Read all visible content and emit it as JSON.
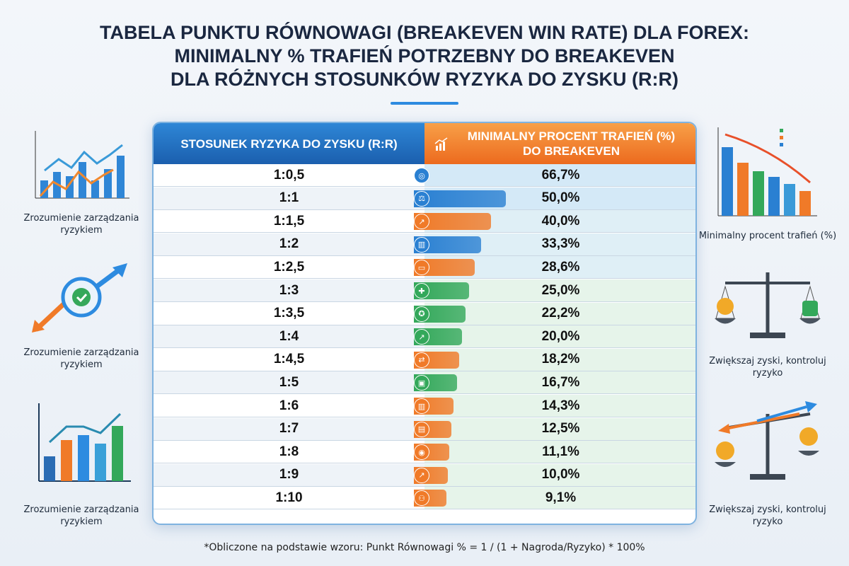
{
  "title": [
    "TABELA PUNKTU RÓWNOWAGI (BREAKEVEN WIN RATE) DLA FOREX:",
    "MINIMALNY % TRAFIEŃ POTRZEBNY DO BREAKEVEN",
    "DLA RÓŻNYCH STOSUNKÓW RYZYKA DO ZYSKU (R:R)"
  ],
  "side_left": [
    "Zrozumienie zarządzania ryzykiem",
    "Zrozumienie zarządzania ryzykiem",
    "Zrozumienie zarządzania ryzykiem"
  ],
  "side_right": [
    "Minimalny procent trafień (%)",
    "Zwiększaj zyski, kontroluj ryzyko",
    "Zwiększaj zyski, kontroluj ryzyko"
  ],
  "footnote": "*Obliczone na podstawie wzoru: Punkt Równowagi % = 1 / (1 + Nagroda/Ryzyko) * 100%",
  "colors": {
    "blue": "#2a80d2",
    "orange": "#f07a28",
    "green": "#33a85a",
    "header_left": "#1f6cbc",
    "header_right": "#f08a30"
  },
  "chart_data": {
    "type": "table",
    "columns": [
      "STOSUNEK RYZYKA DO ZYSKU (R:R)",
      "MINIMALNY PROCENT TRAFIEŃ (%) DO BREAKEVEN"
    ],
    "categories": [
      "1:0,5",
      "1:1",
      "1:1,5",
      "1:2",
      "1:2,5",
      "1:3",
      "1:3,5",
      "1:4",
      "1:4,5",
      "1:5",
      "1:6",
      "1:7",
      "1:8",
      "1:9",
      "1:10"
    ],
    "values": [
      66.7,
      50.0,
      40.0,
      33.3,
      28.6,
      25.0,
      22.2,
      20.0,
      18.2,
      16.7,
      14.3,
      12.5,
      11.1,
      10.0,
      9.1
    ],
    "labels": [
      "66,7%",
      "50,0%",
      "40,0%",
      "33,3%",
      "28,6%",
      "25,0%",
      "22,2%",
      "20,0%",
      "18,2%",
      "16,7%",
      "14,3%",
      "12,5%",
      "11,1%",
      "10,0%",
      "9,1%"
    ],
    "bar_colors": [
      "blue",
      "blue",
      "orange",
      "blue",
      "orange",
      "green",
      "green",
      "green",
      "orange",
      "green",
      "orange",
      "orange",
      "orange",
      "orange",
      "orange"
    ]
  }
}
